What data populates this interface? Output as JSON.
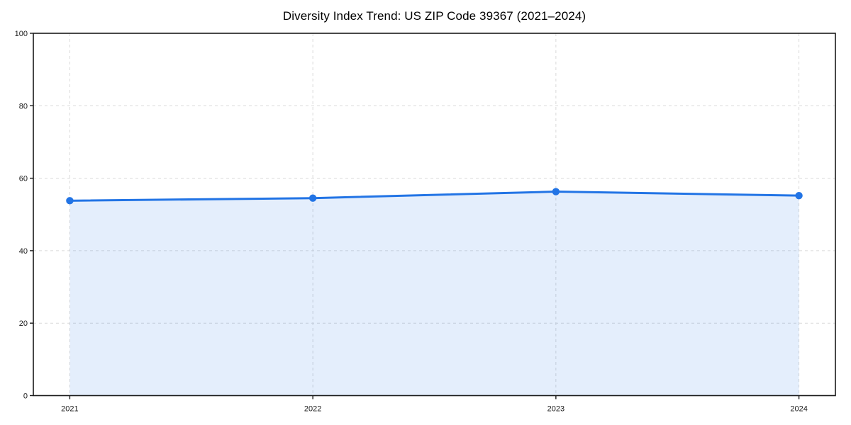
{
  "page": {
    "background": "#ffffff"
  },
  "chart_data": {
    "type": "line",
    "title": "Diversity Index Trend: US ZIP Code 39367 (2021–2024)",
    "x": [
      2021,
      2022,
      2023,
      2024
    ],
    "series": [
      {
        "name": "Diversity Index",
        "values": [
          53.8,
          54.5,
          56.3,
          55.2
        ]
      }
    ],
    "xticks": [
      2021,
      2022,
      2023,
      2024
    ],
    "yticks": [
      0,
      20,
      40,
      60,
      80,
      100
    ],
    "xlim": [
      2020.85,
      2024.15
    ],
    "ylim": [
      0,
      100
    ],
    "xlabel": "",
    "ylabel": "",
    "grid": {
      "visible": true,
      "style": "dashed"
    },
    "legend": {
      "visible": false
    },
    "area_fill": true,
    "marker": "circle",
    "colors": {
      "line": "#2274e5",
      "fill": "rgba(34,116,229,0.12)",
      "grid": "#d9d9d9",
      "axis": "#1a1a1a",
      "text": "#1a1a1a",
      "title": "#000000"
    }
  }
}
